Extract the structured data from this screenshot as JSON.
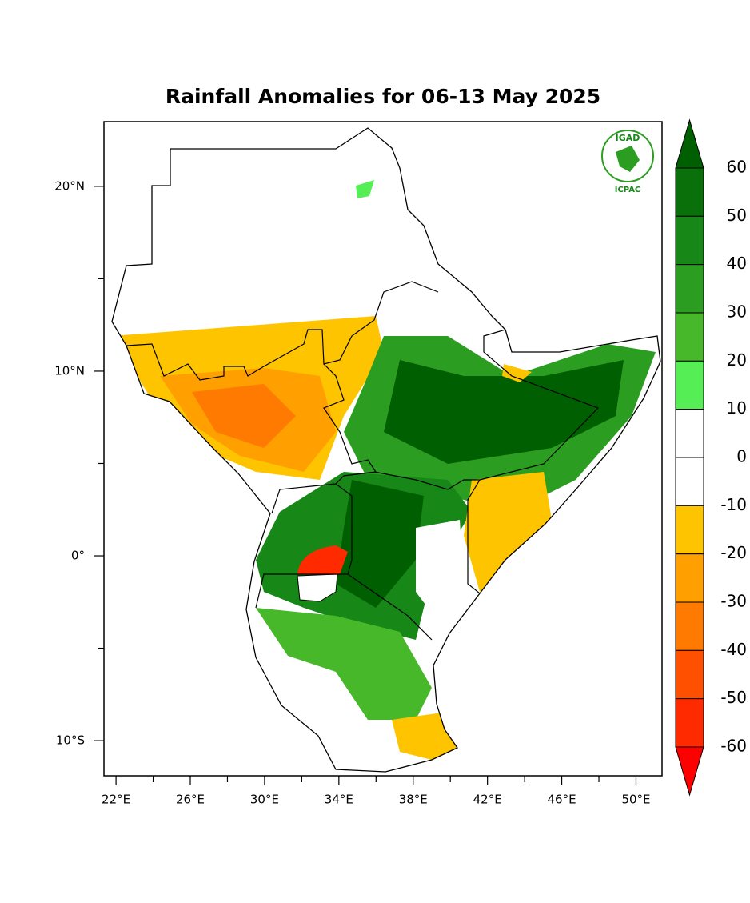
{
  "title": "Rainfall Anomalies for 06-13 May 2025",
  "map": {
    "lonlim": [
      21.35,
      51.4
    ],
    "latlim": [
      -11.9,
      23.5
    ],
    "lon_ticks": [
      {
        "value": 22,
        "label": "22°E"
      },
      {
        "value": 26,
        "label": "26°E"
      },
      {
        "value": 30,
        "label": "30°E"
      },
      {
        "value": 34,
        "label": "34°E"
      },
      {
        "value": 38,
        "label": "38°E"
      },
      {
        "value": 42,
        "label": "42°E"
      },
      {
        "value": 46,
        "label": "46°E"
      },
      {
        "value": 50,
        "label": "50°E"
      }
    ],
    "lon_minor_ticks": [
      24,
      28,
      32,
      36,
      40,
      44,
      48
    ],
    "lat_ticks": [
      {
        "value": 20,
        "label": "20°N"
      },
      {
        "value": 10,
        "label": "10°N"
      },
      {
        "value": 0,
        "label": "0°"
      },
      {
        "value": -10,
        "label": "10°S"
      }
    ],
    "lat_minor_ticks": [
      15,
      5,
      -5
    ]
  },
  "colorbar": {
    "levels": [
      60,
      50,
      40,
      30,
      20,
      10,
      0,
      -10,
      -20,
      -30,
      -40,
      -50,
      -60
    ],
    "colors": [
      "#005f00",
      "#0a700a",
      "#178717",
      "#2b9e22",
      "#47b82a",
      "#55ee55",
      "#ffffff",
      "#ffffff",
      "#ffc400",
      "#ff9f00",
      "#ff7a00",
      "#ff5000",
      "#ff2a00",
      "#ff0000"
    ]
  },
  "logo": {
    "top": "IGAD",
    "bottom": "ICPAC"
  }
}
